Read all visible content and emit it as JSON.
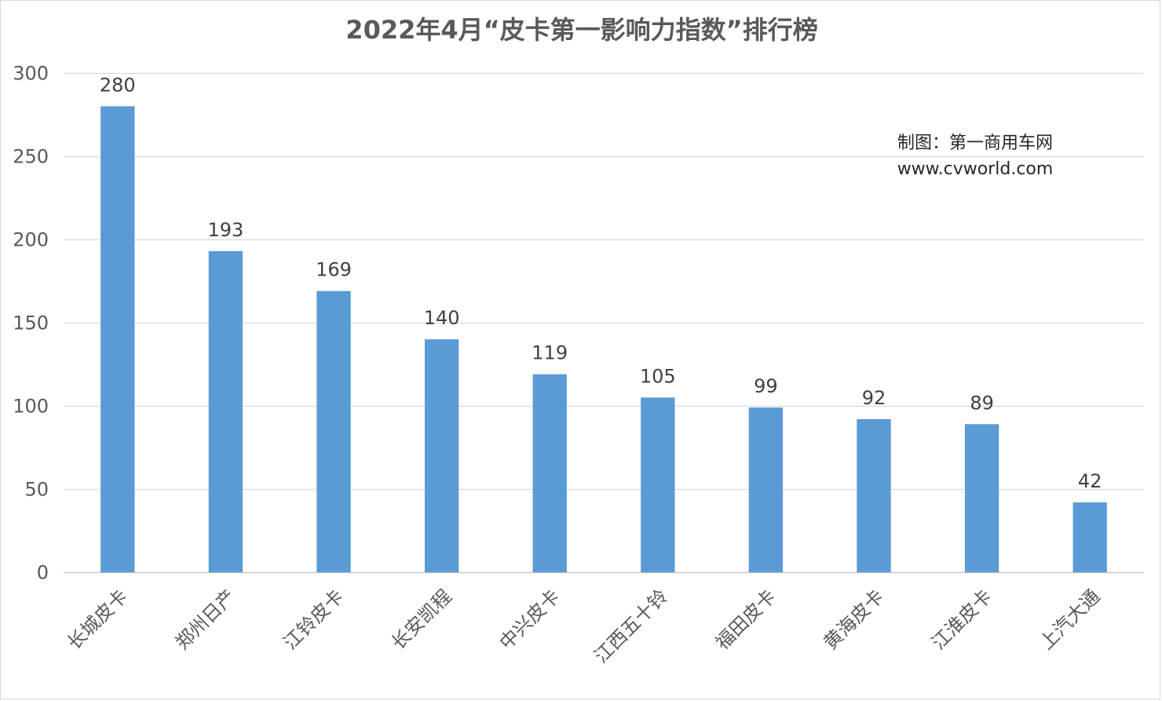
{
  "chart_data": {
    "type": "bar",
    "title": "2022年4月“皮卡第一影响力指数”排行榜",
    "categories": [
      "长城皮卡",
      "郑州日产",
      "江铃皮卡",
      "长安凯程",
      "中兴皮卡",
      "江西五十铃",
      "福田皮卡",
      "黄海皮卡",
      "江淮皮卡",
      "上汽大通"
    ],
    "values": [
      280,
      193,
      169,
      140,
      119,
      105,
      99,
      92,
      89,
      42
    ],
    "ylim": [
      0,
      300
    ],
    "yticks": [
      0,
      50,
      100,
      150,
      200,
      250,
      300
    ],
    "grid": true,
    "bar_color": "#5b9bd5",
    "data_labels": true,
    "legend": "none"
  },
  "annotation": {
    "line1": "制图：第一商用车网",
    "line2": "www.cvworld.com"
  }
}
